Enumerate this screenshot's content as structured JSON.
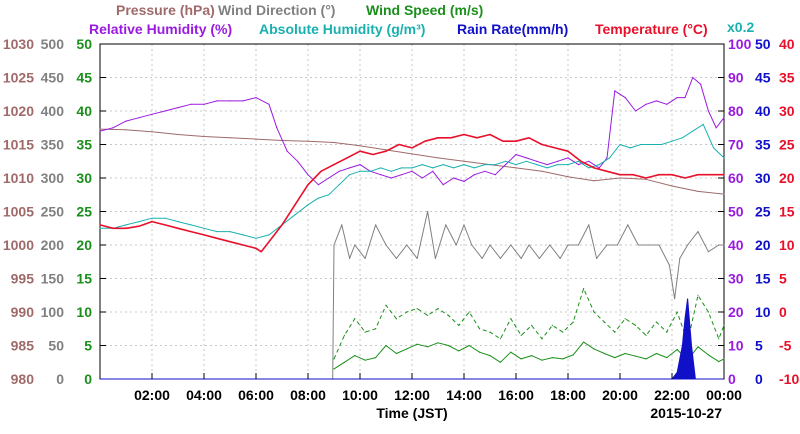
{
  "chart_data": {
    "type": "line",
    "legend_row1": [
      {
        "name": "Pressure (hPa)",
        "color": "#a06a6a"
      },
      {
        "name": "Wind Direction (°)",
        "color": "#808080"
      },
      {
        "name": "Wind Speed (m/s)",
        "color": "#1a8f1a"
      }
    ],
    "legend_row2": [
      {
        "name": "Relative Humidity (%)",
        "color": "#9a1ae0"
      },
      {
        "name": "Absolute Humidity (g/m³)",
        "color": "#1ab0b0"
      },
      {
        "name": "Rain Rate(mm/h)",
        "color": "#1010c8"
      },
      {
        "name": "Temperature (°C)",
        "color": "#e8102a"
      }
    ],
    "rain_scale_label": "x0.2",
    "xlabel": "Time (JST)",
    "date_label": "2015-10-27",
    "xlim": [
      0,
      24
    ],
    "x_ticks": [
      {
        "value": 2,
        "label": "02:00"
      },
      {
        "value": 4,
        "label": "04:00"
      },
      {
        "value": 6,
        "label": "06:00"
      },
      {
        "value": 8,
        "label": "08:00"
      },
      {
        "value": 10,
        "label": "10:00"
      },
      {
        "value": 12,
        "label": "12:00"
      },
      {
        "value": 14,
        "label": "14:00"
      },
      {
        "value": 16,
        "label": "16:00"
      },
      {
        "value": 18,
        "label": "18:00"
      },
      {
        "value": 20,
        "label": "20:00"
      },
      {
        "value": 22,
        "label": "22:00"
      },
      {
        "value": 24,
        "label": "00:00"
      }
    ],
    "axes": [
      {
        "name": "Pressure",
        "unit": "hPa",
        "color": "#a06a6a",
        "side": "left",
        "range": [
          980,
          1030
        ],
        "ticks": [
          "980",
          "985",
          "990",
          "995",
          "1000",
          "1005",
          "1010",
          "1015",
          "1020",
          "1025",
          "1030"
        ]
      },
      {
        "name": "Wind Direction",
        "unit": "°",
        "color": "#808080",
        "side": "left",
        "range": [
          0,
          500
        ],
        "ticks": [
          "0",
          "50",
          "100",
          "150",
          "200",
          "250",
          "300",
          "350",
          "400",
          "450",
          "500"
        ]
      },
      {
        "name": "Wind Speed",
        "unit": "m/s",
        "color": "#1a8f1a",
        "side": "left",
        "range": [
          0,
          50
        ],
        "ticks": [
          "0",
          "5",
          "10",
          "15",
          "20",
          "25",
          "30",
          "35",
          "40",
          "45",
          "50"
        ]
      },
      {
        "name": "Humidity",
        "unit": "%",
        "color": "#9a1ae0",
        "side": "right",
        "range": [
          0,
          100
        ],
        "ticks": [
          "0",
          "10",
          "20",
          "30",
          "40",
          "50",
          "60",
          "70",
          "80",
          "90",
          "100"
        ]
      },
      {
        "name": "Rain Rate",
        "unit": "mm/h",
        "color": "#1010c8",
        "side": "right",
        "range": [
          0,
          50
        ],
        "ticks": [
          "0",
          "5",
          "10",
          "15",
          "20",
          "25",
          "30",
          "35",
          "40",
          "45",
          "50"
        ]
      },
      {
        "name": "Temperature",
        "unit": "°C",
        "color": "#e8102a",
        "side": "right",
        "range": [
          -10,
          40
        ],
        "ticks": [
          "-10",
          "-5",
          "0",
          "5",
          "10",
          "15",
          "20",
          "25",
          "30",
          "35",
          "40"
        ]
      }
    ],
    "grid": true,
    "series": [
      {
        "name": "Pressure (hPa)",
        "color": "#a06a6a",
        "axis": 0,
        "style": "solid",
        "x": [
          0,
          1,
          2,
          3,
          4,
          5,
          6,
          7,
          8,
          9,
          10,
          11,
          12,
          13,
          14,
          15,
          16,
          17,
          18,
          19,
          20,
          21,
          22,
          23,
          24
        ],
        "y": [
          1017.3,
          1017.2,
          1016.9,
          1016.5,
          1016.2,
          1016.0,
          1015.8,
          1015.6,
          1015.5,
          1015.3,
          1014.8,
          1014.2,
          1013.6,
          1013.0,
          1012.5,
          1012.0,
          1011.5,
          1011.0,
          1010.2,
          1009.6,
          1010.0,
          1009.8,
          1008.8,
          1008.0,
          1007.6
        ]
      },
      {
        "name": "Wind Direction (°)",
        "color": "#808080",
        "axis": 1,
        "style": "solid",
        "x": [
          8.95,
          9.0,
          9.3,
          9.6,
          9.8,
          10.2,
          10.6,
          11.0,
          11.4,
          11.8,
          12.2,
          12.6,
          12.9,
          13.3,
          13.7,
          14.0,
          14.3,
          14.7,
          15.0,
          15.4,
          15.8,
          16.2,
          16.5,
          16.9,
          17.3,
          17.7,
          18.0,
          18.4,
          18.8,
          19.1,
          19.5,
          19.9,
          20.3,
          20.7,
          21.1,
          21.5,
          21.9,
          22.1,
          22.3,
          22.6,
          23.0,
          23.4,
          23.8,
          24.0
        ],
        "y": [
          0,
          200,
          230,
          180,
          200,
          180,
          230,
          200,
          180,
          200,
          180,
          250,
          180,
          230,
          200,
          230,
          200,
          180,
          200,
          180,
          200,
          180,
          200,
          180,
          200,
          180,
          200,
          200,
          230,
          180,
          200,
          200,
          230,
          200,
          200,
          200,
          170,
          120,
          180,
          200,
          220,
          190,
          200,
          200
        ]
      },
      {
        "name": "Wind Speed (m/s)",
        "color": "#1a8f1a",
        "axis": 2,
        "style": "solid",
        "x": [
          9.0,
          9.4,
          9.8,
          10.2,
          10.6,
          11.0,
          11.4,
          11.8,
          12.2,
          12.6,
          13.0,
          13.4,
          13.8,
          14.2,
          14.6,
          15.0,
          15.4,
          15.8,
          16.2,
          16.6,
          17.0,
          17.4,
          17.8,
          18.2,
          18.6,
          19.0,
          19.4,
          19.8,
          20.2,
          20.6,
          21.0,
          21.4,
          21.8,
          22.2,
          22.6,
          23.0,
          23.4,
          23.8,
          24.0
        ],
        "y": [
          1.5,
          2.5,
          3.5,
          2.8,
          3.2,
          5.0,
          3.8,
          4.5,
          5.2,
          4.8,
          5.4,
          5.0,
          4.2,
          5.0,
          4.0,
          3.5,
          2.5,
          4.0,
          3.0,
          3.5,
          2.8,
          3.2,
          3.0,
          3.6,
          5.5,
          4.5,
          3.8,
          3.2,
          3.8,
          3.4,
          3.0,
          3.8,
          3.2,
          4.4,
          2.8,
          4.8,
          3.6,
          2.6,
          3.0
        ]
      },
      {
        "name": "Wind Speed gust (m/s)",
        "color": "#1a8f1a",
        "axis": 2,
        "style": "dashed",
        "legend": false,
        "x": [
          9.0,
          9.4,
          9.8,
          10.2,
          10.6,
          11.0,
          11.4,
          11.8,
          12.2,
          12.6,
          13.0,
          13.4,
          13.8,
          14.2,
          14.6,
          15.0,
          15.4,
          15.8,
          16.2,
          16.6,
          17.0,
          17.4,
          17.8,
          18.2,
          18.6,
          19.0,
          19.4,
          19.8,
          20.2,
          20.6,
          21.0,
          21.4,
          21.8,
          22.2,
          22.6,
          23.0,
          23.4,
          23.8,
          24.0
        ],
        "y": [
          3.0,
          6.5,
          9.0,
          7.0,
          7.5,
          11.0,
          9.0,
          10.0,
          10.5,
          9.5,
          10.5,
          9.5,
          8.0,
          10.0,
          7.5,
          7.0,
          6.0,
          9.0,
          6.5,
          8.0,
          6.0,
          8.0,
          7.0,
          8.5,
          13.5,
          10.0,
          8.5,
          7.0,
          9.0,
          8.0,
          6.5,
          8.5,
          7.0,
          10.0,
          5.5,
          12.5,
          10.0,
          6.0,
          8.0
        ]
      },
      {
        "name": "Relative Humidity (%)",
        "color": "#9a1ae0",
        "axis": 3,
        "style": "solid",
        "x": [
          0,
          0.5,
          1,
          1.5,
          2,
          2.5,
          3,
          3.5,
          4,
          4.5,
          5,
          5.5,
          6,
          6.5,
          6.8,
          7.2,
          7.6,
          8.0,
          8.4,
          8.8,
          9.2,
          9.6,
          10.0,
          10.4,
          10.8,
          11.2,
          11.6,
          12.0,
          12.4,
          12.8,
          13.2,
          13.6,
          14.0,
          14.4,
          14.8,
          15.2,
          15.6,
          16.0,
          16.4,
          16.8,
          17.2,
          17.6,
          18.0,
          18.4,
          18.8,
          19.2,
          19.5,
          19.8,
          20.2,
          20.6,
          21.0,
          21.4,
          21.8,
          22.2,
          22.5,
          22.8,
          23.1,
          23.4,
          23.7,
          24.0
        ],
        "y": [
          74,
          75,
          77,
          78,
          79,
          80,
          81,
          82,
          82,
          83,
          83,
          83,
          84,
          82,
          75,
          68,
          65,
          61,
          58,
          60,
          62,
          63,
          64,
          62,
          61,
          60,
          61,
          62,
          60,
          62,
          58,
          60,
          59,
          61,
          62,
          61,
          64,
          67,
          66,
          65,
          64,
          65,
          66,
          64,
          65,
          63,
          66,
          86,
          84,
          80,
          82,
          83,
          82,
          84,
          84,
          90,
          88,
          80,
          75,
          78
        ]
      },
      {
        "name": "Absolute Humidity (g/m³)",
        "color": "#1ab0b0",
        "axis": 3,
        "style": "solid",
        "x": [
          0,
          0.5,
          1,
          1.5,
          2,
          2.5,
          3,
          3.5,
          4,
          4.5,
          5,
          5.5,
          6,
          6.5,
          7.0,
          7.5,
          8.0,
          8.4,
          8.8,
          9.2,
          9.6,
          10.0,
          10.4,
          10.8,
          11.2,
          11.6,
          12.0,
          12.4,
          12.8,
          13.2,
          13.6,
          14.0,
          14.4,
          14.8,
          15.2,
          15.6,
          16.0,
          16.4,
          16.8,
          17.2,
          17.6,
          18.0,
          18.4,
          18.8,
          19.2,
          19.6,
          20.0,
          20.4,
          20.8,
          21.2,
          21.6,
          22.0,
          22.4,
          22.8,
          23.2,
          23.6,
          24.0
        ],
        "y": [
          45,
          45,
          46,
          47,
          48,
          48,
          47,
          46,
          45,
          44,
          44,
          43,
          42,
          43,
          46,
          49,
          52,
          54,
          55,
          58,
          61,
          62,
          62,
          63,
          62,
          63,
          63,
          64,
          63,
          64,
          63,
          64,
          63,
          64,
          64,
          65,
          64,
          65,
          64,
          63,
          64,
          64,
          65,
          63,
          64,
          66,
          70,
          69,
          70,
          70,
          70,
          71,
          72,
          74,
          76,
          69,
          66
        ]
      },
      {
        "name": "Rain Rate(mm/h)",
        "color": "#1010c8",
        "axis": 4,
        "style": "area",
        "x": [
          0,
          22.0,
          22.2,
          22.4,
          22.5,
          22.6,
          22.75,
          22.9,
          24.0
        ],
        "y": [
          0,
          0,
          1.0,
          5.0,
          9.0,
          12.0,
          5.0,
          0,
          0
        ]
      },
      {
        "name": "Temperature (°C)",
        "color": "#e8102a",
        "axis": 5,
        "style": "solid",
        "x": [
          0,
          0.5,
          1,
          1.5,
          2,
          2.5,
          3,
          3.5,
          4,
          4.5,
          5,
          5.5,
          6,
          6.2,
          6.5,
          7.0,
          7.5,
          8.0,
          8.5,
          9.0,
          9.5,
          10.0,
          10.5,
          11.0,
          11.5,
          12.0,
          12.5,
          13.0,
          13.5,
          14.0,
          14.5,
          15.0,
          15.5,
          16.0,
          16.5,
          17.0,
          17.5,
          18.0,
          18.5,
          19.0,
          19.5,
          20.0,
          20.5,
          21.0,
          21.5,
          22.0,
          22.5,
          23.0,
          23.5,
          24.0
        ],
        "y": [
          13.0,
          12.5,
          12.5,
          12.8,
          13.5,
          13.0,
          12.5,
          12.0,
          11.5,
          11.0,
          10.5,
          10.0,
          9.5,
          9.0,
          10.5,
          13.0,
          16.0,
          19.0,
          21.0,
          22.0,
          23.0,
          24.0,
          23.5,
          24.0,
          25.0,
          24.5,
          25.5,
          26.0,
          26.0,
          26.5,
          26.0,
          26.5,
          25.5,
          25.5,
          26.0,
          25.0,
          24.5,
          24.0,
          22.5,
          21.5,
          21.0,
          20.5,
          20.5,
          20.0,
          20.5,
          20.5,
          20.0,
          20.5,
          20.5,
          20.5
        ]
      }
    ]
  }
}
